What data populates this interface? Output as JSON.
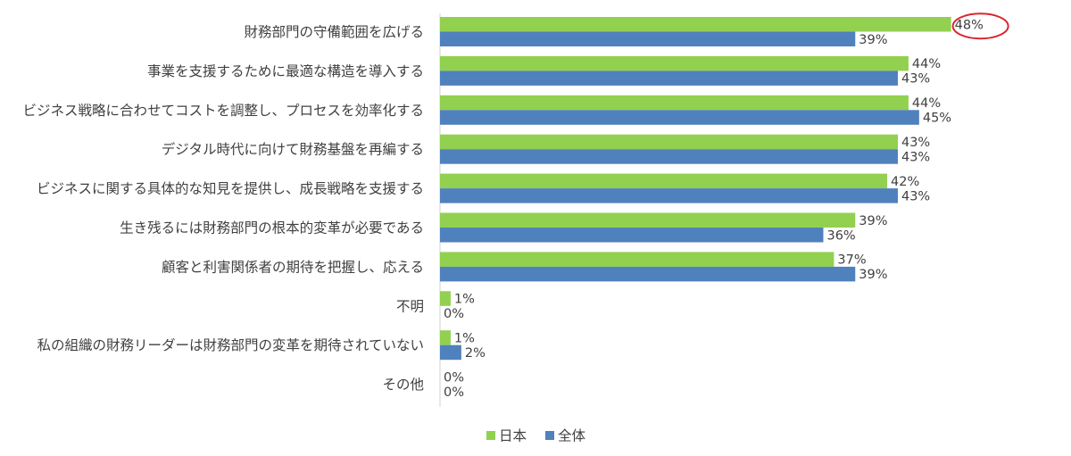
{
  "chart_data": {
    "type": "bar",
    "orientation": "horizontal",
    "categories": [
      "財務部門の守備範囲を広げる",
      "事業を支援するために最適な構造を導入する",
      "ビジネス戦略に合わせてコストを調整し、プロセスを効率化する",
      "デジタル時代に向けて財務基盤を再編する",
      "ビジネスに関する具体的な知見を提供し、成長戦略を支援する",
      "生き残るには財務部門の根本的変革が必要である",
      "顧客と利害関係者の期待を把握し、応える",
      "不明",
      "私の組織の財務リーダーは財務部門の変革を期待されていない",
      "その他"
    ],
    "series": [
      {
        "name": "日本",
        "color": "#92d050",
        "values": [
          48,
          44,
          44,
          43,
          42,
          39,
          37,
          1,
          1,
          0
        ]
      },
      {
        "name": "全体",
        "color": "#4f81bd",
        "values": [
          39,
          43,
          45,
          43,
          43,
          36,
          39,
          0,
          2,
          0
        ]
      }
    ],
    "value_suffix": "%",
    "xlim": [
      0,
      100
    ],
    "legend_position": "bottom",
    "grid": false,
    "annotation": {
      "type": "circle",
      "color": "#d9262e",
      "category_index": 0,
      "series_index": 0
    }
  }
}
